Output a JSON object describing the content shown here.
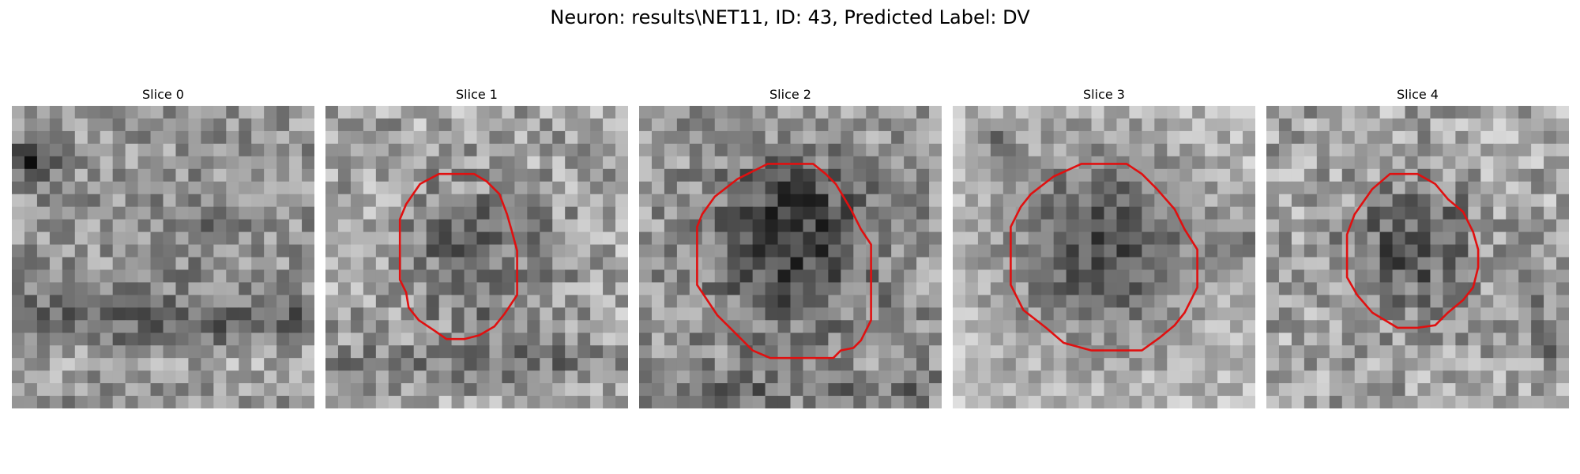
{
  "figure": {
    "title": "Neuron: results\\NET11, ID: 43, Predicted Label: DV",
    "contour_color": "#e01010",
    "panels": [
      {
        "title": "Slice 0",
        "has_contour": false
      },
      {
        "title": "Slice 1",
        "has_contour": true
      },
      {
        "title": "Slice 2",
        "has_contour": true
      },
      {
        "title": "Slice 3",
        "has_contour": true
      },
      {
        "title": "Slice 4",
        "has_contour": true
      }
    ]
  }
}
